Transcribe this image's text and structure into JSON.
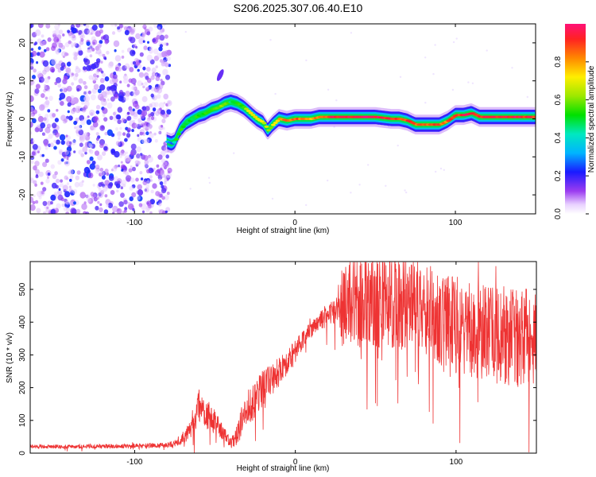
{
  "title": "S206.2025.307.06.40.E10",
  "colors": {
    "snr_line": "#ee3333",
    "dot": "#8833ee",
    "dot_dark": "#6611dd",
    "axis": "#000000"
  },
  "chart_data": [
    {
      "type": "heatmap",
      "name": "spectrogram",
      "xlabel": "Height of straight line (km)",
      "ylabel": "Frequency (Hz)",
      "xlim": [
        -165,
        150
      ],
      "ylim": [
        -25,
        25
      ],
      "xticks": [
        -100,
        0,
        100
      ],
      "yticks": [
        -20,
        -10,
        0,
        10,
        20
      ],
      "colorbar": {
        "label": "Normalized spectral amplitude",
        "range": [
          0.0,
          1.0
        ],
        "ticks": [
          0.0,
          0.2,
          0.4,
          0.6,
          0.8
        ],
        "tick_labels": [
          "0.0",
          "0.2",
          "0.4",
          "0.6",
          "0.8"
        ]
      },
      "ridge": {
        "description": "dominant frequency track",
        "x": [
          -80,
          -77,
          -75,
          -72,
          -68,
          -64,
          -60,
          -56,
          -52,
          -48,
          -44,
          -40,
          -36,
          -32,
          -28,
          -24,
          -20,
          -17,
          -14,
          -10,
          -5,
          0,
          5,
          10,
          15,
          20,
          30,
          40,
          50,
          60,
          65,
          70,
          75,
          80,
          85,
          90,
          95,
          100,
          105,
          110,
          115,
          120,
          130,
          140,
          150
        ],
        "y": [
          -6,
          -6.5,
          -6,
          -3,
          -1,
          0,
          1,
          1.5,
          2.5,
          3,
          4,
          4.5,
          4,
          3,
          1.5,
          0,
          -1,
          -3,
          -1.5,
          0,
          -0.5,
          0,
          0,
          0,
          0.5,
          0.5,
          0.5,
          0.5,
          0.5,
          0,
          0,
          -0.5,
          -1.5,
          -1.5,
          -1.5,
          -1.5,
          -0.5,
          1,
          1,
          1.5,
          0.5,
          0.5,
          0.5,
          0.5,
          0.5
        ],
        "amplitude": [
          0.3,
          0.3,
          0.5,
          0.55,
          0.5,
          0.5,
          0.55,
          0.5,
          0.55,
          0.6,
          0.55,
          0.5,
          0.55,
          0.6,
          0.7,
          0.7,
          0.65,
          0.6,
          0.7,
          0.8,
          0.85,
          0.85,
          0.85,
          0.8,
          0.85,
          0.9,
          0.95,
          0.95,
          0.95,
          0.9,
          0.9,
          0.9,
          0.85,
          0.85,
          0.9,
          0.85,
          0.85,
          0.9,
          0.95,
          0.9,
          0.9,
          0.95,
          0.95,
          0.95,
          0.9
        ]
      },
      "noise_region": {
        "x_range": [
          -165,
          -75
        ],
        "y_range": [
          -25,
          25
        ],
        "amplitude_range": [
          0.05,
          0.25
        ]
      },
      "feature_patch": {
        "x": [
          -48,
          -45
        ],
        "y": [
          10,
          13
        ]
      }
    },
    {
      "type": "line",
      "name": "snr",
      "xlabel": "Height of straight line (km)",
      "ylabel": "SNR (10 * v/v)",
      "xlim": [
        -165,
        150
      ],
      "ylim": [
        0,
        585
      ],
      "xticks": [
        -100,
        0,
        100
      ],
      "yticks": [
        0,
        100,
        200,
        300,
        400,
        500
      ],
      "envelope": {
        "x": [
          -165,
          -140,
          -100,
          -80,
          -72,
          -66,
          -63,
          -60,
          -57,
          -53,
          -50,
          -45,
          -40,
          -36,
          -33,
          -30,
          -27,
          -24,
          -20,
          -15,
          -10,
          -5,
          0,
          5,
          10,
          15,
          20,
          25,
          28,
          35,
          45,
          55,
          65,
          75,
          80,
          85,
          90,
          100,
          110,
          120,
          130,
          140,
          150
        ],
        "baseline": [
          20,
          20,
          22,
          25,
          35,
          70,
          110,
          150,
          120,
          110,
          100,
          60,
          30,
          60,
          100,
          140,
          150,
          170,
          200,
          220,
          250,
          280,
          310,
          350,
          380,
          400,
          420,
          430,
          440,
          455,
          460,
          470,
          470,
          470,
          440,
          420,
          400,
          390,
          380,
          370,
          360,
          350,
          340
        ],
        "spread": [
          12,
          12,
          14,
          15,
          25,
          70,
          90,
          100,
          90,
          80,
          70,
          50,
          30,
          70,
          110,
          100,
          110,
          110,
          120,
          100,
          90,
          80,
          70,
          60,
          55,
          60,
          70,
          100,
          230,
          260,
          290,
          300,
          320,
          300,
          300,
          300,
          300,
          300,
          300,
          300,
          300,
          300,
          290
        ]
      }
    }
  ]
}
